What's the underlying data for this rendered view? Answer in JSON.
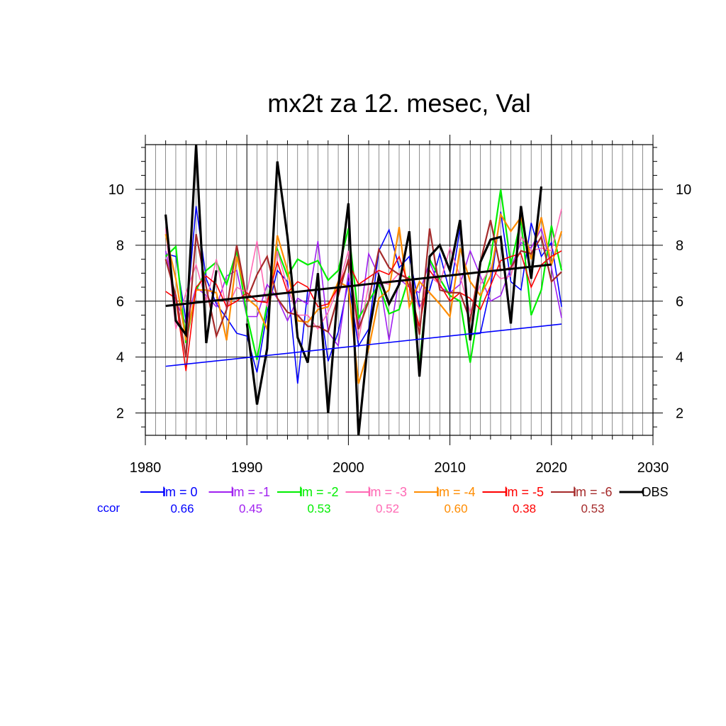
{
  "chart_data": {
    "type": "line",
    "title": "mx2t za 12. mesec, Val",
    "xlabel": "",
    "ylabel": "",
    "xlim": [
      1980,
      2030
    ],
    "ylim": [
      1.2,
      11.6
    ],
    "xticks": [
      1980,
      1990,
      2000,
      2010,
      2020,
      2030
    ],
    "yticks": [
      2,
      4,
      6,
      8,
      10
    ],
    "grid": true,
    "legend_position": "bottom",
    "ccor_label": "ccor",
    "x": [
      1982,
      1983,
      1984,
      1985,
      1986,
      1987,
      1988,
      1989,
      1990,
      1991,
      1992,
      1993,
      1994,
      1995,
      1996,
      1997,
      1998,
      1999,
      2000,
      2001,
      2002,
      2003,
      2004,
      2005,
      2006,
      2007,
      2008,
      2009,
      2010,
      2011,
      2012,
      2013,
      2014,
      2015,
      2016,
      2017,
      2018,
      2019,
      2020,
      2021
    ],
    "series": [
      {
        "name": "lm = 0",
        "ccor": "0.66",
        "color": "#0000ff",
        "width": 1.6,
        "values": [
          7.7,
          7.6,
          5.3,
          9.4,
          6.8,
          5.9,
          5.4,
          4.85,
          4.75,
          3.45,
          5.6,
          7.1,
          6.7,
          3.05,
          6.4,
          6.4,
          3.85,
          4.9,
          6.7,
          4.4,
          5.0,
          7.8,
          8.55,
          7.2,
          7.6,
          5.8,
          6.4,
          7.7,
          6.3,
          8.6,
          4.8,
          4.85,
          6.5,
          9.2,
          6.7,
          6.4,
          8.8,
          7.6,
          8.1,
          5.8
        ]
      },
      {
        "name": "lm = -1",
        "ccor": "0.45",
        "color": "#a020f0",
        "width": 1.6,
        "values": [
          7.8,
          6.0,
          5.2,
          6.5,
          6.2,
          5.8,
          6.9,
          7.1,
          5.45,
          5.45,
          6.6,
          6.1,
          5.3,
          6.1,
          5.9,
          8.15,
          4.9,
          4.4,
          7.0,
          5.0,
          7.7,
          6.9,
          4.6,
          6.8,
          6.5,
          6.3,
          7.4,
          6.5,
          6.3,
          6.6,
          7.8,
          6.9,
          6.0,
          6.2,
          7.2,
          8.1,
          7.9,
          8.6,
          7.2,
          5.4
        ]
      },
      {
        "name": "lm = -2",
        "ccor": "0.53",
        "color": "#00ee00",
        "width": 2.2,
        "values": [
          7.6,
          7.95,
          4.5,
          6.4,
          7.1,
          7.4,
          6.6,
          7.8,
          5.5,
          3.9,
          5.9,
          7.85,
          6.9,
          7.5,
          7.3,
          7.45,
          6.75,
          7.1,
          8.6,
          5.4,
          6.0,
          6.6,
          5.55,
          5.7,
          6.9,
          3.7,
          7.5,
          6.8,
          6.2,
          6.0,
          3.8,
          6.1,
          7.5,
          10.0,
          7.3,
          8.9,
          5.5,
          6.4,
          8.7,
          7.1
        ]
      },
      {
        "name": "lm = -3",
        "ccor": "0.52",
        "color": "#ff69b4",
        "width": 1.6,
        "values": [
          8.6,
          5.0,
          6.3,
          7.3,
          6.0,
          7.5,
          5.7,
          6.5,
          6.3,
          8.15,
          5.8,
          7.8,
          6.5,
          5.5,
          5.5,
          5.0,
          5.6,
          6.5,
          7.8,
          4.6,
          6.6,
          6.7,
          6.6,
          7.0,
          6.8,
          5.7,
          6.9,
          6.6,
          7.9,
          6.9,
          5.6,
          6.6,
          7.2,
          6.8,
          6.9,
          8.3,
          7.8,
          7.9,
          7.8,
          9.3
        ]
      },
      {
        "name": "lm = -4",
        "ccor": "0.60",
        "color": "#ff8c00",
        "width": 2.2,
        "values": [
          8.4,
          6.8,
          4.6,
          6.4,
          6.4,
          6.3,
          4.6,
          7.6,
          6.1,
          5.8,
          5.0,
          8.35,
          7.1,
          5.3,
          5.25,
          5.7,
          5.8,
          6.7,
          6.5,
          3.05,
          4.3,
          6.1,
          6.4,
          8.65,
          5.8,
          6.7,
          6.3,
          5.9,
          5.45,
          7.9,
          6.7,
          6.2,
          6.9,
          9.1,
          8.5,
          9.0,
          7.5,
          9.0,
          7.3,
          8.5
        ]
      },
      {
        "name": "lm = -5",
        "ccor": "0.38",
        "color": "#ff0000",
        "width": 1.6,
        "values": [
          6.35,
          6.1,
          3.5,
          6.5,
          6.9,
          6.6,
          5.8,
          6.0,
          6.3,
          6.0,
          5.95,
          7.4,
          6.3,
          6.7,
          6.5,
          5.8,
          5.9,
          6.5,
          7.4,
          6.6,
          6.85,
          7.1,
          6.95,
          7.6,
          6.5,
          5.1,
          7.1,
          6.6,
          6.0,
          6.3,
          6.1,
          5.7,
          6.55,
          7.45,
          7.6,
          7.7,
          6.5,
          7.3,
          7.6,
          7.8
        ]
      },
      {
        "name": "lm = -6",
        "ccor": "0.53",
        "color": "#a52a2a",
        "width": 2.2,
        "values": [
          7.5,
          6.2,
          4.0,
          8.4,
          6.5,
          4.75,
          5.7,
          8.0,
          6.05,
          6.95,
          7.6,
          6.1,
          5.6,
          5.5,
          5.1,
          5.1,
          4.9,
          6.2,
          7.5,
          5.0,
          6.0,
          7.85,
          7.2,
          6.95,
          6.8,
          4.8,
          8.6,
          6.4,
          6.3,
          6.3,
          5.3,
          7.4,
          8.9,
          7.1,
          7.2,
          7.8,
          7.7,
          8.3,
          6.7,
          7.05
        ]
      },
      {
        "name": "OBS",
        "ccor": "",
        "color": "#000000",
        "width": 3.2,
        "values": [
          9.1,
          5.3,
          4.8,
          11.6,
          4.5,
          7.1,
          null,
          null,
          5.2,
          2.3,
          4.3,
          11.0,
          8.3,
          4.7,
          3.8,
          7.0,
          2.0,
          6.5,
          9.5,
          1.2,
          4.8,
          6.9,
          5.9,
          6.6,
          8.5,
          3.3,
          7.6,
          8.0,
          7.1,
          8.9,
          4.6,
          7.4,
          8.2,
          8.3,
          5.2,
          9.4,
          6.8,
          10.1,
          null,
          null
        ]
      }
    ],
    "trend_lines": [
      {
        "color": "#0000ff",
        "width": 1.6,
        "x": [
          1982,
          2021
        ],
        "y": [
          3.67,
          5.18
        ]
      },
      {
        "color": "#000000",
        "width": 3.0,
        "x": [
          1982,
          2020
        ],
        "y": [
          5.83,
          7.31
        ]
      }
    ]
  }
}
